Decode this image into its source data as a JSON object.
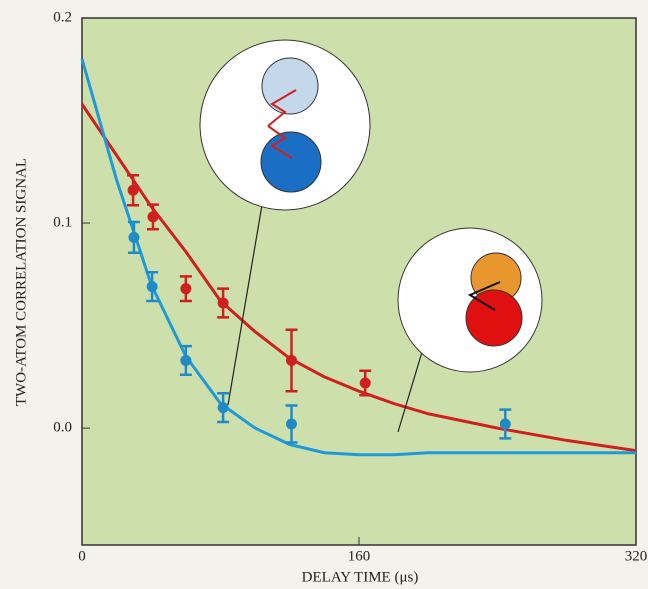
{
  "chart_data": {
    "type": "scatter",
    "y_label": "TWO-ATOM CORRELATION SIGNAL",
    "x_label": "DELAY TIME (μs)",
    "xlim": [
      0,
      320
    ],
    "ylim": [
      -0.057,
      0.2
    ],
    "xticks": [
      0,
      160,
      320
    ],
    "yticks": [
      {
        "value": 0,
        "label": "0.0"
      },
      0.1,
      0.2
    ],
    "background": "#cde0ab",
    "series": [
      {
        "color": "#d0201e",
        "x": [
          29.5,
          41,
          60,
          81.5,
          121,
          163.6
        ],
        "values": [
          0.116,
          0.103,
          0.068,
          0.061,
          0.033,
          0.022
        ],
        "errors": [
          0.0073,
          0.006,
          0.006,
          0.007,
          0.015,
          0.006
        ]
      },
      {
        "color": "#1f8ac8",
        "x": [
          30,
          40.5,
          60,
          81.5,
          121,
          244.5
        ],
        "values": [
          0.093,
          0.069,
          0.033,
          0.01,
          0.002,
          0.002
        ],
        "errors": [
          0.0075,
          0.007,
          0.007,
          0.007,
          0.009,
          0.007
        ]
      }
    ],
    "fit_lines": [
      {
        "color": "#d0201e",
        "x": [
          0,
          20,
          40,
          60,
          80,
          100,
          120,
          140,
          160,
          180,
          200,
          240,
          280,
          320
        ],
        "values": [
          0.158,
          0.133,
          0.108,
          0.086,
          0.062,
          0.047,
          0.034,
          0.025,
          0.018,
          0.012,
          0.007,
          0.0,
          -0.006,
          -0.011
        ]
      },
      {
        "color": "#1f9ad8",
        "x": [
          0,
          20,
          40,
          60,
          80,
          100,
          120,
          140,
          160,
          180,
          200,
          240,
          280,
          320
        ],
        "values": [
          0.18,
          0.121,
          0.07,
          0.035,
          0.012,
          0.0,
          -0.008,
          -0.012,
          -0.013,
          -0.013,
          -0.012,
          -0.012,
          -0.012,
          -0.012
        ]
      }
    ]
  }
}
